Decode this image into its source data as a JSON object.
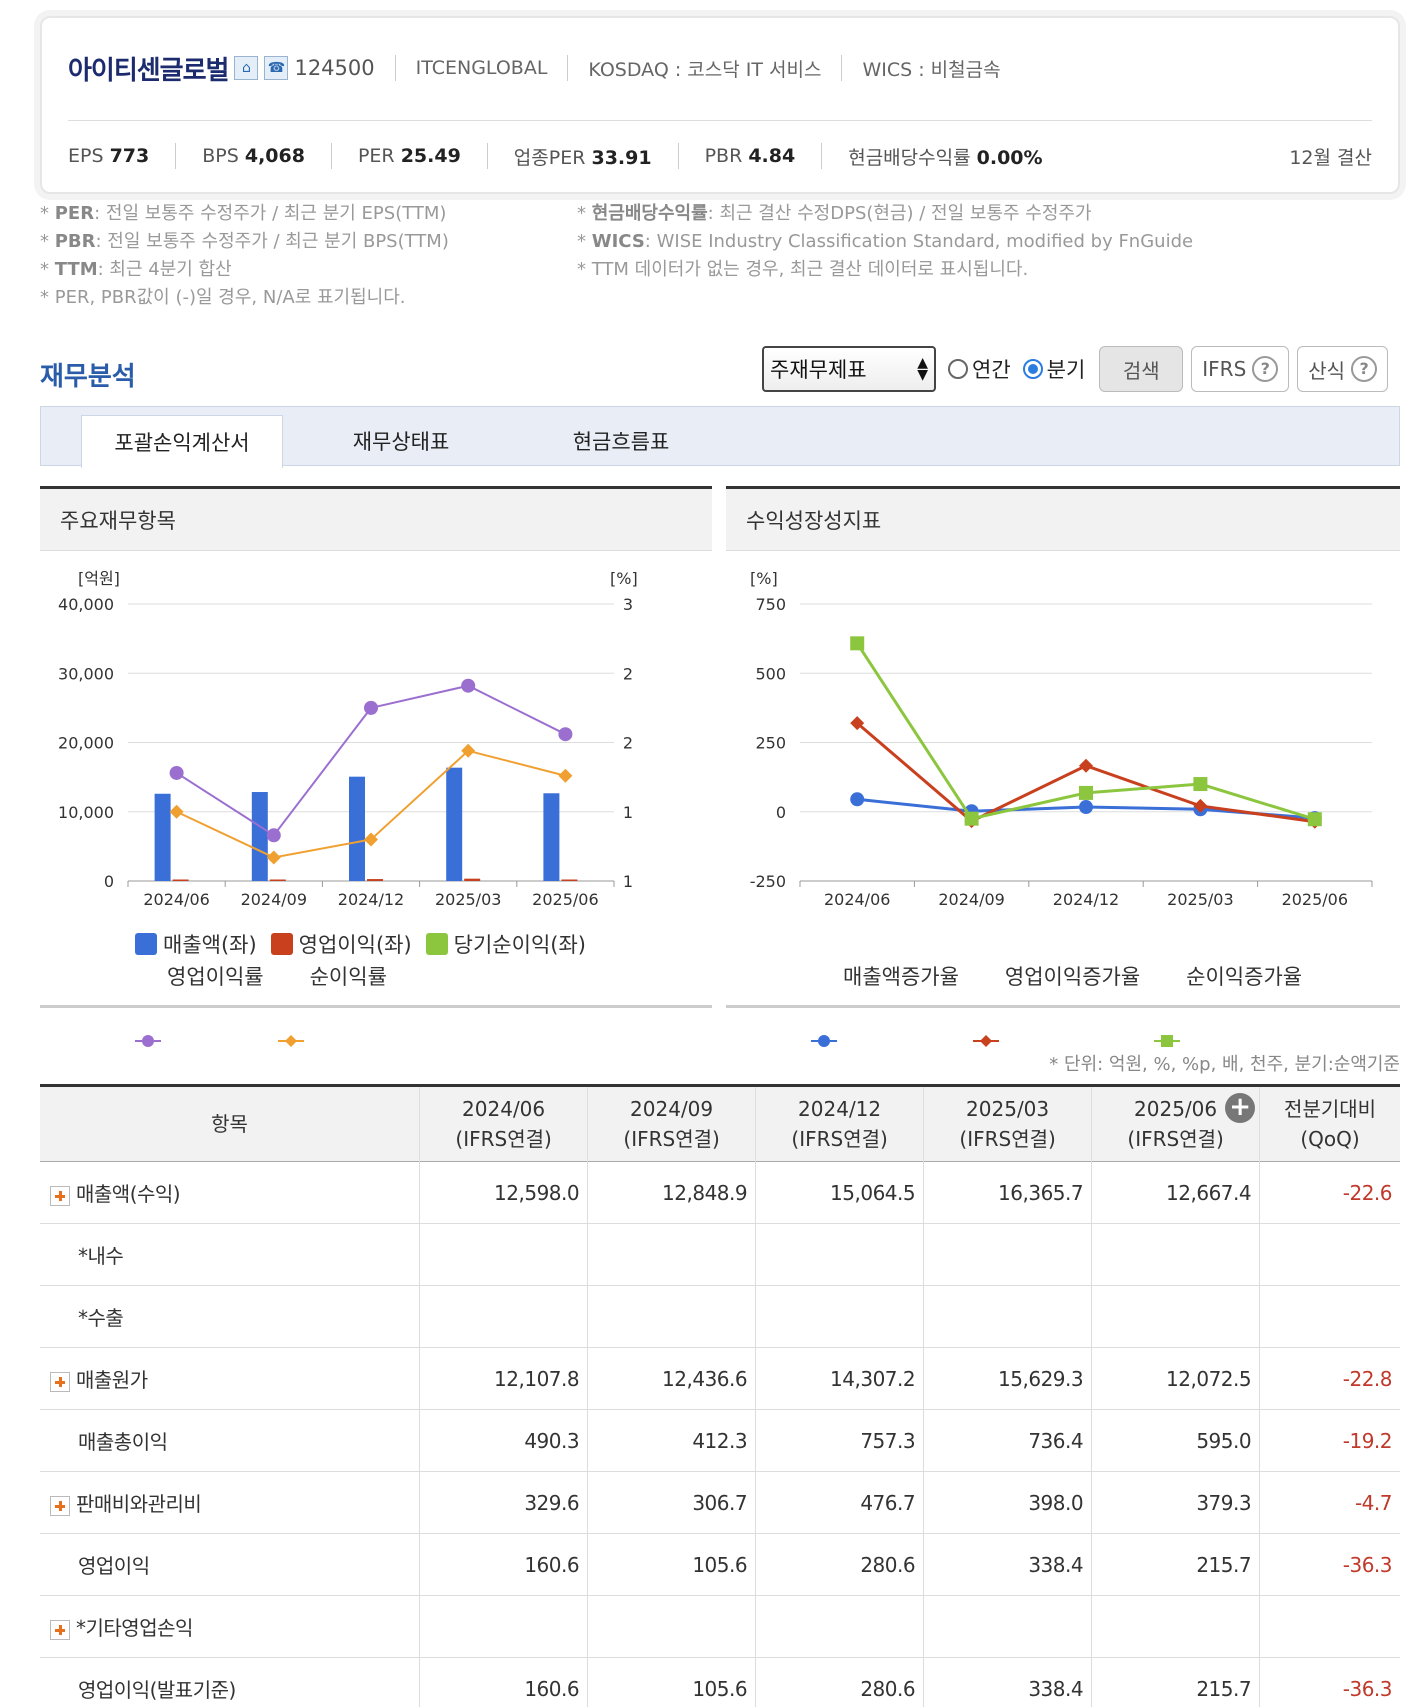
{
  "header": {
    "company_name": "아이티센글로벌",
    "icons": [
      "home-icon",
      "phone-icon"
    ],
    "code": "124500",
    "eng_name": "ITCENGLOBAL",
    "market": "KOSDAQ : 코스닥 IT 서비스",
    "wics": "WICS : 비철금속",
    "metrics": [
      {
        "label": "EPS",
        "value": "773"
      },
      {
        "label": "BPS",
        "value": "4,068"
      },
      {
        "label": "PER",
        "value": "25.49"
      },
      {
        "label": "업종PER",
        "value": "33.91"
      },
      {
        "label": "PBR",
        "value": "4.84"
      },
      {
        "label": "현금배당수익률",
        "value": "0.00%"
      }
    ],
    "settlement": "12월 결산"
  },
  "notes": {
    "left": [
      {
        "key": "PER",
        "text": ": 전일 보통주 수정주가 / 최근 분기 EPS(TTM)"
      },
      {
        "key": "PBR",
        "text": ": 전일 보통주 수정주가 / 최근 분기 BPS(TTM)"
      },
      {
        "key": "TTM",
        "text": ": 최근 4분기 합산"
      },
      {
        "key": "",
        "text": "PER, PBR값이 (-)일 경우, N/A로 표기됩니다."
      }
    ],
    "right": [
      {
        "key": "현금배당수익률",
        "text": ": 최근 결산 수정DPS(현금) / 전일 보통주 수정주가"
      },
      {
        "key": "WICS",
        "text": ": WISE Industry Classification Standard, modified by FnGuide"
      },
      {
        "key": "",
        "text": "TTM 데이터가 없는 경우, 최근 결산 데이터로 표시됩니다."
      }
    ]
  },
  "section": {
    "title": "재무분석",
    "select_value": "주재무제표",
    "radio_annual": "연간",
    "radio_quarter": "분기",
    "search_btn": "검색",
    "ifrs_btn": "IFRS",
    "formula_btn": "산식",
    "help_mark": "?"
  },
  "tabs": [
    "포괄손익계산서",
    "재무상태표",
    "현금흐름표"
  ],
  "panels": {
    "left_title": "주요재무항목",
    "right_title": "수익성장성지표"
  },
  "chart_data": [
    {
      "type": "bar",
      "title": "주요재무항목",
      "categories": [
        "2024/06",
        "2024/09",
        "2024/12",
        "2025/03",
        "2025/06"
      ],
      "y_left_unit": "[억원]",
      "y_right_unit": "[%]",
      "y_left_ticks": [
        "40,000",
        "30,000",
        "20,000",
        "10,000",
        "0"
      ],
      "y_left_ylim": [
        0,
        40000
      ],
      "y_right_ticks": [
        "3",
        "2",
        "2",
        "1",
        "1"
      ],
      "y_right_ylim": [
        1,
        3
      ],
      "series": [
        {
          "name": "매출액(좌)",
          "kind": "bar",
          "axis": "left",
          "color": "#3a6fd8",
          "values": [
            12598.0,
            12848.9,
            15064.5,
            16365.7,
            12667.4
          ]
        },
        {
          "name": "영업이익(좌)",
          "kind": "bar",
          "axis": "left",
          "color": "#c8401e",
          "values": [
            160.6,
            105.6,
            280.6,
            338.4,
            215.7
          ]
        },
        {
          "name": "당기순이익(좌)",
          "kind": "bar",
          "axis": "left",
          "color": "#8cc63f",
          "values": [
            null,
            null,
            null,
            null,
            null
          ]
        },
        {
          "name": "영업이익률",
          "kind": "line",
          "axis": "right",
          "color": "#9b6fd0",
          "values": [
            1.78,
            1.33,
            2.25,
            2.41,
            2.06
          ]
        },
        {
          "name": "순이익률",
          "kind": "line",
          "axis": "right",
          "color": "#f0a030",
          "values": [
            1.5,
            1.17,
            1.3,
            1.94,
            1.76
          ]
        }
      ],
      "legend": "bottom",
      "grid": true
    },
    {
      "type": "line",
      "title": "수익성장성지표",
      "categories": [
        "2024/06",
        "2024/09",
        "2024/12",
        "2025/03",
        "2025/06"
      ],
      "y_unit": "[%]",
      "y_ticks": [
        "750",
        "500",
        "250",
        "0",
        "-250"
      ],
      "ylim": [
        -250,
        750
      ],
      "series": [
        {
          "name": "매출액증가율",
          "marker": "circle",
          "color": "#3a6fd8",
          "values": [
            45,
            2,
            17,
            9,
            -23
          ]
        },
        {
          "name": "영업이익증가율",
          "marker": "diamond",
          "color": "#c8401e",
          "values": [
            320,
            -34,
            166,
            21,
            -36
          ]
        },
        {
          "name": "순이익증가율",
          "marker": "square",
          "color": "#8cc63f",
          "values": [
            608,
            -25,
            68,
            100,
            -27
          ]
        }
      ],
      "legend": "bottom",
      "grid": true
    }
  ],
  "unit_note": "* 단위: 억원, %, %p, 배, 천주, 분기:순액기준",
  "table": {
    "headers": [
      {
        "l1": "항목",
        "l2": ""
      },
      {
        "l1": "2024/06",
        "l2": "(IFRS연결)"
      },
      {
        "l1": "2024/09",
        "l2": "(IFRS연결)"
      },
      {
        "l1": "2024/12",
        "l2": "(IFRS연결)"
      },
      {
        "l1": "2025/03",
        "l2": "(IFRS연결)"
      },
      {
        "l1": "2025/06",
        "l2": "(IFRS연결)"
      },
      {
        "l1": "전분기대비",
        "l2": "(QoQ)"
      }
    ],
    "expand_mark": "+",
    "rows": [
      {
        "label": "매출액(수익)",
        "expandable": true,
        "values": [
          "12,598.0",
          "12,848.9",
          "15,064.5",
          "16,365.7",
          "12,667.4",
          "-22.6"
        ]
      },
      {
        "label": "*내수",
        "expandable": false,
        "values": [
          "",
          "",
          "",
          "",
          "",
          ""
        ]
      },
      {
        "label": "*수출",
        "expandable": false,
        "values": [
          "",
          "",
          "",
          "",
          "",
          ""
        ]
      },
      {
        "label": "매출원가",
        "expandable": true,
        "values": [
          "12,107.8",
          "12,436.6",
          "14,307.2",
          "15,629.3",
          "12,072.5",
          "-22.8"
        ]
      },
      {
        "label": "매출총이익",
        "expandable": false,
        "values": [
          "490.3",
          "412.3",
          "757.3",
          "736.4",
          "595.0",
          "-19.2"
        ]
      },
      {
        "label": "판매비와관리비",
        "expandable": true,
        "values": [
          "329.6",
          "306.7",
          "476.7",
          "398.0",
          "379.3",
          "-4.7"
        ]
      },
      {
        "label": "영업이익",
        "expandable": false,
        "values": [
          "160.6",
          "105.6",
          "280.6",
          "338.4",
          "215.7",
          "-36.3"
        ]
      },
      {
        "label": "*기타영업손익",
        "expandable": true,
        "values": [
          "",
          "",
          "",
          "",
          "",
          ""
        ]
      },
      {
        "label": "영업이익(발표기준)",
        "expandable": false,
        "values": [
          "160.6",
          "105.6",
          "280.6",
          "338.4",
          "215.7",
          "-36.3"
        ]
      }
    ]
  }
}
